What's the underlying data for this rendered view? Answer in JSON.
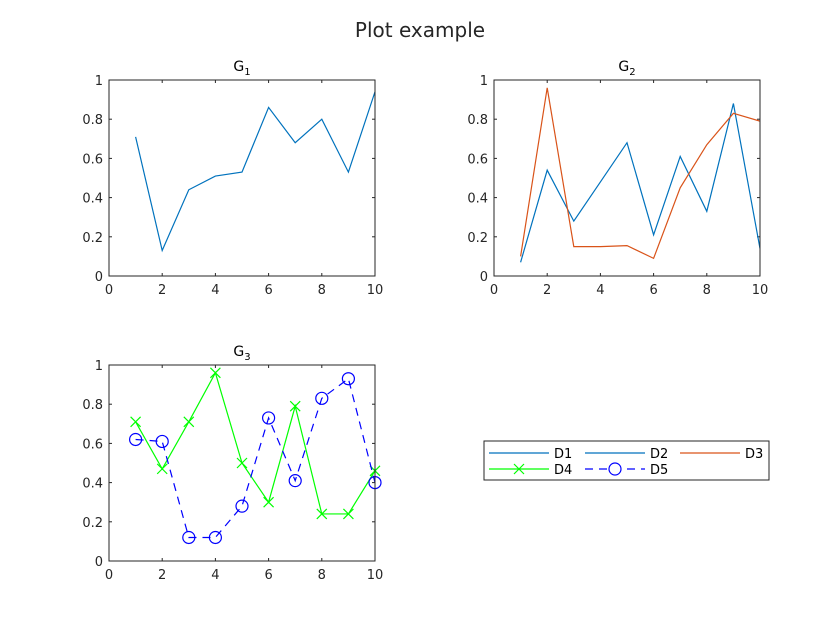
{
  "figure": {
    "title": "Plot example"
  },
  "chart_data": [
    {
      "type": "line",
      "title": "G_1",
      "title_main": "G",
      "title_sub": "1",
      "xlim": [
        0,
        10
      ],
      "ylim": [
        0,
        1
      ],
      "xticks": [
        0,
        2,
        4,
        6,
        8,
        10
      ],
      "yticks": [
        0,
        0.2,
        0.4,
        0.6,
        0.8,
        1
      ],
      "x": [
        1,
        2,
        3,
        4,
        5,
        6,
        7,
        8,
        9,
        10
      ],
      "series": [
        {
          "name": "D1",
          "color": "#0072BD",
          "style": "solid",
          "marker": "none",
          "values": [
            0.71,
            0.13,
            0.44,
            0.51,
            0.53,
            0.86,
            0.68,
            0.8,
            0.53,
            0.94
          ]
        }
      ]
    },
    {
      "type": "line",
      "title": "G_2",
      "title_main": "G",
      "title_sub": "2",
      "xlim": [
        0,
        10
      ],
      "ylim": [
        0,
        1
      ],
      "xticks": [
        0,
        2,
        4,
        6,
        8,
        10
      ],
      "yticks": [
        0,
        0.2,
        0.4,
        0.6,
        0.8,
        1
      ],
      "x": [
        1,
        2,
        3,
        4,
        5,
        6,
        7,
        8,
        9,
        10
      ],
      "series": [
        {
          "name": "D2",
          "color": "#0072BD",
          "style": "solid",
          "marker": "none",
          "values": [
            0.07,
            0.54,
            0.28,
            0.48,
            0.68,
            0.21,
            0.61,
            0.33,
            0.88,
            0.14
          ]
        },
        {
          "name": "D3",
          "color": "#D95319",
          "style": "solid",
          "marker": "none",
          "values": [
            0.1,
            0.96,
            0.15,
            0.15,
            0.155,
            0.09,
            0.45,
            0.67,
            0.83,
            0.79
          ]
        }
      ]
    },
    {
      "type": "line",
      "title": "G_3",
      "title_main": "G",
      "title_sub": "3",
      "xlim": [
        0,
        10
      ],
      "ylim": [
        0,
        1
      ],
      "xticks": [
        0,
        2,
        4,
        6,
        8,
        10
      ],
      "yticks": [
        0,
        0.2,
        0.4,
        0.6,
        0.8,
        1
      ],
      "x": [
        1,
        2,
        3,
        4,
        5,
        6,
        7,
        8,
        9,
        10
      ],
      "series": [
        {
          "name": "D4",
          "color": "#00FF00",
          "style": "solid",
          "marker": "x",
          "values": [
            0.71,
            0.47,
            0.71,
            0.96,
            0.5,
            0.3,
            0.79,
            0.24,
            0.24,
            0.46
          ]
        },
        {
          "name": "D5",
          "color": "#0000FF",
          "style": "dashed",
          "marker": "o",
          "values": [
            0.62,
            0.61,
            0.12,
            0.12,
            0.28,
            0.73,
            0.41,
            0.83,
            0.93,
            0.4
          ]
        }
      ]
    }
  ],
  "legend": {
    "entries": [
      {
        "label": "D1",
        "color": "#0072BD",
        "style": "solid",
        "marker": "none"
      },
      {
        "label": "D2",
        "color": "#0072BD",
        "style": "solid",
        "marker": "none"
      },
      {
        "label": "D3",
        "color": "#D95319",
        "style": "solid",
        "marker": "none"
      },
      {
        "label": "D4",
        "color": "#00FF00",
        "style": "solid",
        "marker": "x"
      },
      {
        "label": "D5",
        "color": "#0000FF",
        "style": "dashed",
        "marker": "o"
      }
    ]
  }
}
